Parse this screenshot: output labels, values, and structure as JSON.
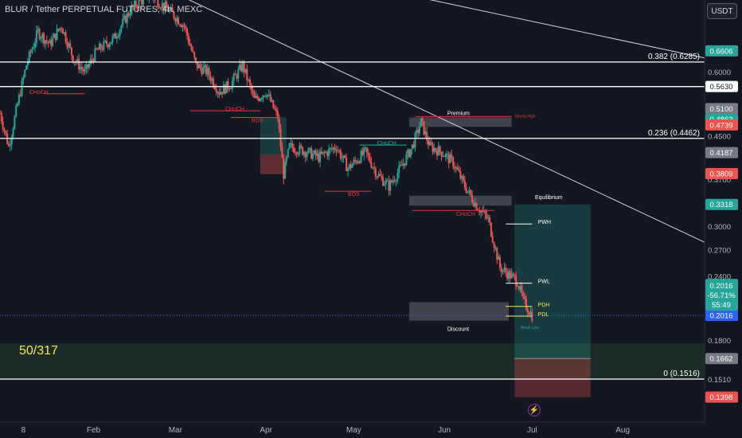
{
  "header": {
    "title": "BLUR / Tether PERPETUAL FUTURES, 4h, MEXC",
    "currency_button": "USDT"
  },
  "overlay": {
    "ratio_text": "50/317",
    "flash_icon": "lightning-icon"
  },
  "colors": {
    "background": "#131722",
    "up_candle": "#26a69a",
    "down_candle": "#ef5350",
    "line_white": "#ffffff",
    "target_zone": "#26a69a",
    "stop_zone": "#ef5350",
    "discount_zone": "#4caf50",
    "structure_red": "#e53935",
    "structure_teal": "#26a69a",
    "pd_yellow": "#f5e94a"
  },
  "chart_data": {
    "type": "candlestick",
    "symbol": "BLUR / Tether PERPETUAL FUTURES",
    "timeframe": "4h",
    "exchange": "MEXC",
    "y_scale": "log",
    "ylim": [
      0.125,
      0.83
    ],
    "x_labels": [
      "8",
      "Feb",
      "Mar",
      "Apr",
      "May",
      "Jun",
      "Jul",
      "Aug"
    ],
    "x_label_days": [
      7,
      31,
      59,
      90,
      120,
      151,
      181,
      212
    ],
    "xlim_days": [
      -1,
      240
    ],
    "y_ticks": [
      0.6,
      0.45,
      0.37,
      0.3,
      0.27,
      0.24,
      0.18,
      0.151
    ],
    "y_tick_labels": [
      "0.6000",
      "0.4500",
      "0.3700",
      "0.3000",
      "0.2700",
      "0.2400",
      "0.1800",
      "0.1510"
    ],
    "price_anchors": [
      {
        "day": -1,
        "price": 0.5
      },
      {
        "day": 2,
        "price": 0.43
      },
      {
        "day": 5,
        "price": 0.52
      },
      {
        "day": 8,
        "price": 0.62
      },
      {
        "day": 12,
        "price": 0.72
      },
      {
        "day": 16,
        "price": 0.68
      },
      {
        "day": 20,
        "price": 0.74
      },
      {
        "day": 24,
        "price": 0.64
      },
      {
        "day": 28,
        "price": 0.6
      },
      {
        "day": 32,
        "price": 0.66
      },
      {
        "day": 38,
        "price": 0.7
      },
      {
        "day": 44,
        "price": 0.8
      },
      {
        "day": 50,
        "price": 0.85
      },
      {
        "day": 56,
        "price": 0.8
      },
      {
        "day": 62,
        "price": 0.74
      },
      {
        "day": 66,
        "price": 0.62
      },
      {
        "day": 70,
        "price": 0.6
      },
      {
        "day": 74,
        "price": 0.55
      },
      {
        "day": 78,
        "price": 0.57
      },
      {
        "day": 82,
        "price": 0.62
      },
      {
        "day": 86,
        "price": 0.53
      },
      {
        "day": 90,
        "price": 0.55
      },
      {
        "day": 94,
        "price": 0.49
      },
      {
        "day": 96,
        "price": 0.38
      },
      {
        "day": 98,
        "price": 0.43
      },
      {
        "day": 104,
        "price": 0.42
      },
      {
        "day": 108,
        "price": 0.41
      },
      {
        "day": 114,
        "price": 0.43
      },
      {
        "day": 118,
        "price": 0.39
      },
      {
        "day": 124,
        "price": 0.42
      },
      {
        "day": 128,
        "price": 0.38
      },
      {
        "day": 132,
        "price": 0.36
      },
      {
        "day": 136,
        "price": 0.39
      },
      {
        "day": 140,
        "price": 0.43
      },
      {
        "day": 143,
        "price": 0.48
      },
      {
        "day": 146,
        "price": 0.43
      },
      {
        "day": 150,
        "price": 0.42
      },
      {
        "day": 154,
        "price": 0.4
      },
      {
        "day": 158,
        "price": 0.36
      },
      {
        "day": 162,
        "price": 0.33
      },
      {
        "day": 166,
        "price": 0.31
      },
      {
        "day": 170,
        "price": 0.25
      },
      {
        "day": 174,
        "price": 0.24
      },
      {
        "day": 176,
        "price": 0.235
      },
      {
        "day": 178,
        "price": 0.215
      },
      {
        "day": 181,
        "price": 0.2016
      }
    ],
    "horizontal_levels": [
      {
        "label": "0.382 (0.6285)",
        "price": 0.6285
      },
      {
        "label": "",
        "price": 0.563
      },
      {
        "label": "0.236 (0.4462)",
        "price": 0.4462
      },
      {
        "label": "0 (0.1516)",
        "price": 0.1516
      }
    ],
    "price_scale_labels": [
      {
        "price": 0.6606,
        "text": "0.6606",
        "color": "#26a69a"
      },
      {
        "price": 0.563,
        "text": "0.5630",
        "color": "#ffffff"
      },
      {
        "price": 0.51,
        "text": "0.5100",
        "color": "#787b86"
      },
      {
        "price": 0.4863,
        "text": "0.4863",
        "color": "#26a69a"
      },
      {
        "price": 0.4739,
        "text": "0.4739",
        "color": "#ef5350"
      },
      {
        "price": 0.4187,
        "text": "0.4187",
        "color": "#787b86"
      },
      {
        "price": 0.3809,
        "text": "0.3809",
        "color": "#ef5350"
      },
      {
        "price": 0.3318,
        "text": "0.3318",
        "color": "#26a69a"
      },
      {
        "price": 0.2016,
        "text": "0.2016",
        "color": "#2962ff"
      },
      {
        "price": 0.1662,
        "text": "0.1662",
        "color": "#787b86"
      },
      {
        "price": 0.1398,
        "text": "0.1398",
        "color": "#ef5350"
      }
    ],
    "current_price_box": {
      "price": 0.2016,
      "lines": [
        "0.2016",
        "-56.71%",
        "55:49"
      ]
    },
    "annotations": [
      {
        "text": "CHoCH",
        "day": 9,
        "price": 0.545,
        "color": "#e53935"
      },
      {
        "text": "CHoCH",
        "day": 76,
        "price": 0.505,
        "color": "#e53935"
      },
      {
        "text": "BOS",
        "day": 85,
        "price": 0.48,
        "color": "#e53935"
      },
      {
        "text": "CHoCH",
        "day": 128,
        "price": 0.433,
        "color": "#26a69a"
      },
      {
        "text": "BOS",
        "day": 118,
        "price": 0.345,
        "color": "#e53935"
      },
      {
        "text": "CHoCH",
        "day": 155,
        "price": 0.315,
        "color": "#e53935"
      },
      {
        "text": "Premium",
        "day": 152,
        "price": 0.495,
        "color": "#ffffff"
      },
      {
        "text": "Strong High",
        "day": 175,
        "price": 0.49,
        "color": "#e53935"
      },
      {
        "text": "Equilibrium",
        "day": 182,
        "price": 0.34,
        "color": "#ffffff"
      },
      {
        "text": "PWH",
        "day": 183,
        "price": 0.304,
        "color": "#ffffff"
      },
      {
        "text": "PWL",
        "day": 183,
        "price": 0.233,
        "color": "#ffffff"
      },
      {
        "text": "PDH",
        "day": 183,
        "price": 0.21,
        "color": "#f5e94a"
      },
      {
        "text": "PDL",
        "day": 183,
        "price": 0.201,
        "color": "#f5e94a"
      },
      {
        "text": "Discount",
        "day": 152,
        "price": 0.188,
        "color": "#ffffff"
      },
      {
        "text": "Weak Low",
        "day": 177,
        "price": 0.19,
        "color": "#26a69a"
      }
    ],
    "trendline": {
      "from": {
        "day": 58,
        "price": 0.86
      },
      "to": {
        "day": 240,
        "price": 0.28
      }
    },
    "trendline_top": {
      "from": {
        "day": 138,
        "price": 0.85
      },
      "to": {
        "day": 240,
        "price": 0.64
      }
    },
    "long_position": {
      "from_day": 175,
      "to_day": 201,
      "entry": 0.1662,
      "target": 0.3318,
      "stop": 0.1398
    }
  }
}
